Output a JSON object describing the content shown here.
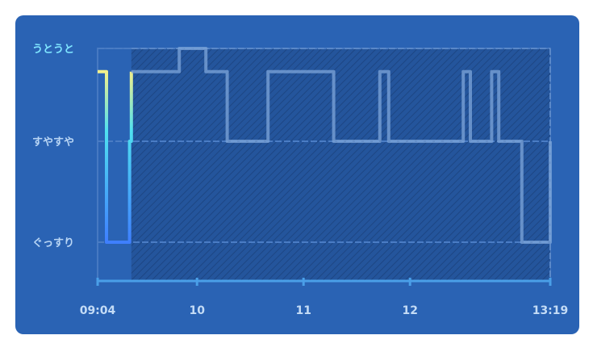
{
  "chart_data": {
    "type": "line",
    "step": true,
    "y_levels": [
      {
        "label": "うとうと",
        "value": 3
      },
      {
        "label": "すやすや",
        "value": 2
      },
      {
        "label": "ぐっすり",
        "value": 1
      }
    ],
    "x_ticks": [
      "09:04",
      "10",
      "11",
      "12",
      "13:19"
    ],
    "x_range": [
      "09:04",
      "13:19"
    ],
    "hatched_from": "09:23",
    "colors": {
      "panel": "#2a63b4",
      "axis": "#4a9fe8",
      "active_top": "#f4f08a",
      "active_mid": "#4fe0f0",
      "active_bottom": "#3f7fff",
      "inactive": "#7da6d9"
    },
    "series": [
      {
        "style": "active",
        "points": [
          [
            "09:04",
            2.75
          ],
          [
            "09:09",
            2.75
          ],
          [
            "09:09",
            1
          ],
          [
            "09:22",
            1
          ],
          [
            "09:22",
            2
          ],
          [
            "09:23",
            2
          ],
          [
            "09:23",
            2.75
          ]
        ]
      },
      {
        "style": "inactive",
        "points": [
          [
            "09:23",
            2.75
          ],
          [
            "09:50",
            2.75
          ],
          [
            "09:50",
            3
          ],
          [
            "10:05",
            3
          ],
          [
            "10:05",
            2.75
          ],
          [
            "10:17",
            2.75
          ],
          [
            "10:17",
            2
          ],
          [
            "10:40",
            2
          ],
          [
            "10:40",
            2.75
          ],
          [
            "11:17",
            2.75
          ],
          [
            "11:17",
            2
          ],
          [
            "11:43",
            2
          ],
          [
            "11:43",
            2.75
          ],
          [
            "11:48",
            2.75
          ],
          [
            "11:48",
            2
          ],
          [
            "12:30",
            2
          ],
          [
            "12:30",
            2.75
          ],
          [
            "12:34",
            2.75
          ],
          [
            "12:34",
            2
          ],
          [
            "12:46",
            2
          ],
          [
            "12:46",
            2.75
          ],
          [
            "12:50",
            2.75
          ],
          [
            "12:50",
            2
          ],
          [
            "13:03",
            2
          ],
          [
            "13:03",
            1
          ],
          [
            "13:19",
            1
          ],
          [
            "13:19",
            2
          ]
        ]
      }
    ]
  }
}
